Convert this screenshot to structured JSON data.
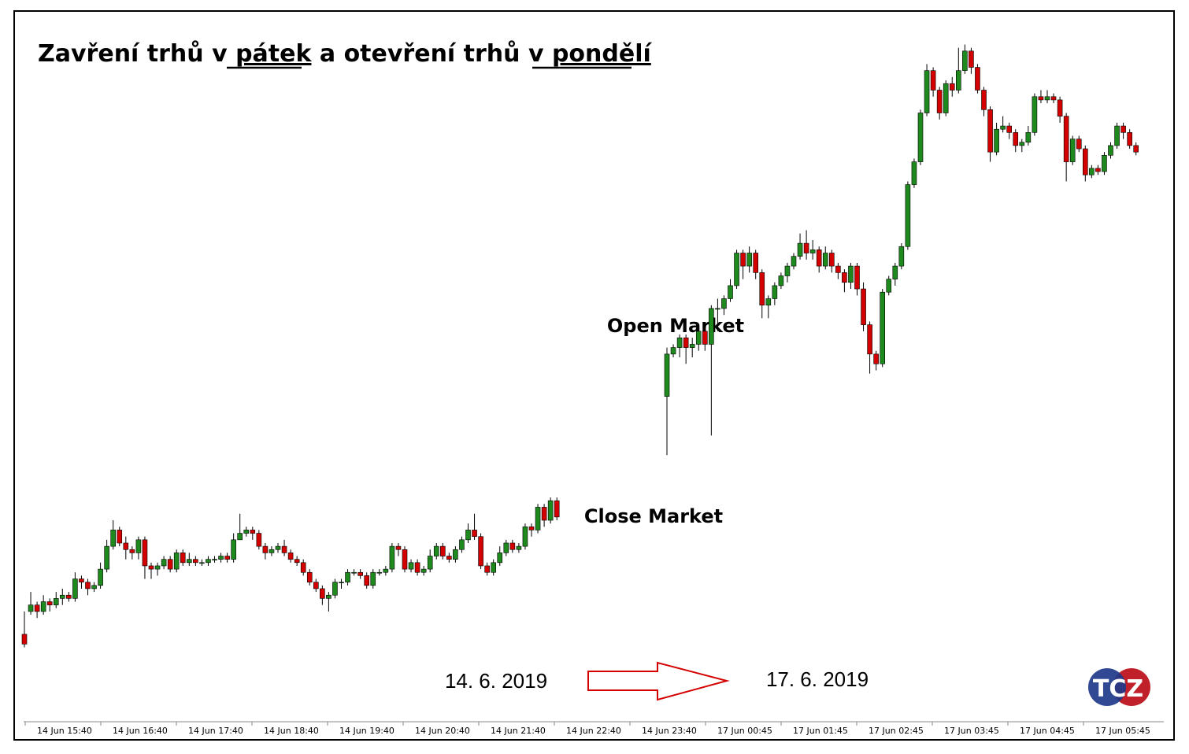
{
  "title": {
    "part1": "Zavření trhů v ",
    "part2": "pátek",
    "part3": " a otevření trhů v ",
    "part4": "pondělí"
  },
  "annotations": {
    "open_market": "Open Market",
    "close_market": "Close Market"
  },
  "dates": {
    "friday": "14. 6. 2019",
    "monday": "17. 6. 2019"
  },
  "logo": {
    "text": "TCZ"
  },
  "colors": {
    "bull": "#1e8a1e",
    "bear": "#d40000",
    "arrow": "#d40000",
    "logo_blue": "#1f3a8a",
    "logo_red": "#c0202a"
  },
  "chart_data": {
    "type": "candlestick",
    "interval": "5 min",
    "x_tick_labels": [
      "14 Jun 15:40",
      "14 Jun 16:40",
      "14 Jun 17:40",
      "14 Jun 18:40",
      "14 Jun 19:40",
      "14 Jun 20:40",
      "14 Jun 21:40",
      "14 Jun 22:40",
      "14 Jun 23:40",
      "17 Jun 00:45",
      "17 Jun 01:45",
      "17 Jun 02:45",
      "17 Jun 03:45",
      "17 Jun 04:45",
      "17 Jun 05:45"
    ],
    "y_range": [
      0,
      100
    ],
    "grid": false,
    "friday_session": [
      [
        15,
        12,
        22,
        11
      ],
      [
        22,
        24,
        28,
        21
      ],
      [
        24,
        22,
        25,
        20
      ],
      [
        22,
        25,
        27,
        21
      ],
      [
        25,
        24,
        26,
        22
      ],
      [
        24,
        26,
        28,
        23
      ],
      [
        26,
        27,
        29,
        24
      ],
      [
        27,
        26,
        28,
        25
      ],
      [
        26,
        32,
        34,
        25
      ],
      [
        32,
        31,
        33,
        29
      ],
      [
        31,
        29,
        32,
        27
      ],
      [
        29,
        30,
        31,
        28
      ],
      [
        30,
        35,
        37,
        29
      ],
      [
        35,
        42,
        44,
        34
      ],
      [
        42,
        47,
        50,
        41
      ],
      [
        47,
        43,
        48,
        42
      ],
      [
        43,
        41,
        45,
        38
      ],
      [
        41,
        40,
        42,
        38
      ],
      [
        40,
        44,
        45,
        38
      ],
      [
        44,
        36,
        45,
        32
      ],
      [
        36,
        35,
        37,
        32
      ],
      [
        35,
        36,
        37,
        33
      ],
      [
        36,
        38,
        39,
        35
      ],
      [
        38,
        35,
        39,
        34
      ],
      [
        35,
        40,
        41,
        34
      ],
      [
        40,
        37,
        41,
        36
      ],
      [
        37,
        38,
        40,
        36
      ],
      [
        38,
        37,
        39,
        36
      ],
      [
        37,
        37,
        38,
        36
      ],
      [
        37,
        38,
        39,
        36
      ],
      [
        38,
        38,
        39,
        37
      ],
      [
        38,
        39,
        40,
        37
      ],
      [
        39,
        38,
        40,
        37
      ],
      [
        38,
        44,
        46,
        37
      ],
      [
        44,
        46,
        52,
        44
      ],
      [
        46,
        47,
        48,
        45
      ],
      [
        47,
        46,
        48,
        44
      ],
      [
        46,
        42,
        47,
        41
      ],
      [
        42,
        40,
        43,
        38
      ],
      [
        40,
        41,
        42,
        39
      ],
      [
        41,
        42,
        43,
        40
      ],
      [
        42,
        40,
        44,
        39
      ],
      [
        40,
        38,
        41,
        37
      ],
      [
        38,
        37,
        39,
        36
      ],
      [
        37,
        34,
        38,
        33
      ],
      [
        34,
        31,
        35,
        30
      ],
      [
        31,
        29,
        32,
        28
      ],
      [
        29,
        26,
        30,
        24
      ],
      [
        26,
        27,
        28,
        22
      ],
      [
        27,
        31,
        32,
        26
      ],
      [
        31,
        31,
        32,
        29
      ],
      [
        31,
        34,
        35,
        30
      ],
      [
        34,
        34,
        35,
        33
      ],
      [
        34,
        33,
        35,
        32
      ],
      [
        33,
        30,
        34,
        29
      ],
      [
        30,
        34,
        35,
        29
      ],
      [
        34,
        34,
        35,
        33
      ],
      [
        34,
        35,
        36,
        33
      ],
      [
        35,
        42,
        43,
        34
      ],
      [
        42,
        41,
        43,
        39
      ],
      [
        41,
        35,
        42,
        34
      ],
      [
        35,
        37,
        38,
        34
      ],
      [
        37,
        34,
        38,
        33
      ],
      [
        34,
        35,
        36,
        33
      ],
      [
        35,
        39,
        41,
        34
      ],
      [
        39,
        42,
        43,
        38
      ],
      [
        42,
        39,
        43,
        38
      ],
      [
        39,
        38,
        40,
        37
      ],
      [
        38,
        41,
        42,
        37
      ],
      [
        41,
        44,
        45,
        40
      ],
      [
        44,
        47,
        49,
        43
      ],
      [
        47,
        45,
        52,
        44
      ],
      [
        45,
        36,
        46,
        35
      ],
      [
        36,
        34,
        37,
        33
      ],
      [
        34,
        37,
        38,
        33
      ],
      [
        37,
        40,
        42,
        36
      ],
      [
        40,
        43,
        44,
        39
      ],
      [
        43,
        41,
        44,
        40
      ],
      [
        41,
        42,
        43,
        40
      ],
      [
        42,
        48,
        49,
        41
      ],
      [
        48,
        47,
        49,
        45
      ],
      [
        47,
        54,
        55,
        46
      ],
      [
        54,
        50,
        55,
        48
      ],
      [
        50,
        56,
        57,
        49
      ],
      [
        56,
        51,
        57,
        50
      ]
    ],
    "monday_session": [
      [
        88,
        101,
        103,
        70
      ],
      [
        101,
        103,
        104,
        100
      ],
      [
        103,
        106,
        107,
        100
      ],
      [
        106,
        103,
        107,
        98
      ],
      [
        103,
        104,
        106,
        100
      ],
      [
        104,
        108,
        109,
        102
      ],
      [
        108,
        104,
        109,
        102
      ],
      [
        104,
        115,
        116,
        76
      ],
      [
        115,
        115,
        118,
        108
      ],
      [
        115,
        118,
        119,
        113
      ],
      [
        118,
        122,
        124,
        117
      ],
      [
        122,
        132,
        133,
        121
      ],
      [
        132,
        128,
        133,
        124
      ],
      [
        128,
        132,
        134,
        126
      ],
      [
        132,
        126,
        133,
        124
      ],
      [
        126,
        116,
        127,
        112
      ],
      [
        116,
        118,
        119,
        112
      ],
      [
        118,
        122,
        123,
        116
      ],
      [
        122,
        125,
        126,
        121
      ],
      [
        125,
        128,
        129,
        123
      ],
      [
        128,
        131,
        132,
        127
      ],
      [
        131,
        135,
        138,
        130
      ],
      [
        135,
        132,
        139,
        130
      ],
      [
        132,
        133,
        136,
        130
      ],
      [
        133,
        128,
        134,
        126
      ],
      [
        128,
        132,
        134,
        127
      ],
      [
        132,
        128,
        133,
        126
      ],
      [
        128,
        126,
        129,
        124
      ],
      [
        126,
        123,
        127,
        120
      ],
      [
        123,
        128,
        129,
        121
      ],
      [
        128,
        121,
        129,
        119
      ],
      [
        121,
        110,
        123,
        108
      ],
      [
        110,
        101,
        111,
        95
      ],
      [
        101,
        98,
        102,
        96
      ],
      [
        98,
        120,
        121,
        97
      ],
      [
        120,
        124,
        125,
        119
      ],
      [
        124,
        128,
        129,
        122
      ],
      [
        128,
        134,
        135,
        127
      ],
      [
        134,
        153,
        154,
        133
      ],
      [
        153,
        160,
        161,
        152
      ],
      [
        160,
        175,
        176,
        159
      ],
      [
        175,
        188,
        190,
        174
      ],
      [
        188,
        182,
        189,
        180
      ],
      [
        182,
        175,
        183,
        173
      ],
      [
        175,
        184,
        185,
        174
      ],
      [
        184,
        182,
        186,
        180
      ],
      [
        182,
        188,
        195,
        181
      ],
      [
        188,
        194,
        196,
        187
      ],
      [
        194,
        189,
        195,
        187
      ],
      [
        189,
        182,
        190,
        181
      ],
      [
        182,
        176,
        183,
        174
      ],
      [
        176,
        163,
        177,
        160
      ],
      [
        163,
        170,
        172,
        162
      ],
      [
        170,
        171,
        174,
        169
      ],
      [
        171,
        169,
        172,
        167
      ],
      [
        169,
        165,
        170,
        163
      ],
      [
        165,
        166,
        167,
        163
      ],
      [
        166,
        169,
        171,
        165
      ],
      [
        169,
        180,
        181,
        168
      ],
      [
        180,
        179,
        182,
        178
      ],
      [
        179,
        180,
        182,
        178
      ],
      [
        180,
        179,
        181,
        178
      ],
      [
        179,
        174,
        180,
        172
      ],
      [
        174,
        160,
        175,
        154
      ],
      [
        160,
        167,
        168,
        159
      ],
      [
        167,
        164,
        168,
        163
      ],
      [
        164,
        156,
        165,
        154
      ],
      [
        156,
        158,
        159,
        155
      ],
      [
        158,
        157,
        159,
        156
      ],
      [
        157,
        162,
        163,
        156
      ],
      [
        162,
        165,
        166,
        161
      ],
      [
        165,
        171,
        172,
        164
      ],
      [
        171,
        169,
        172,
        167
      ],
      [
        169,
        165,
        170,
        164
      ],
      [
        165,
        163,
        166,
        162
      ]
    ]
  }
}
